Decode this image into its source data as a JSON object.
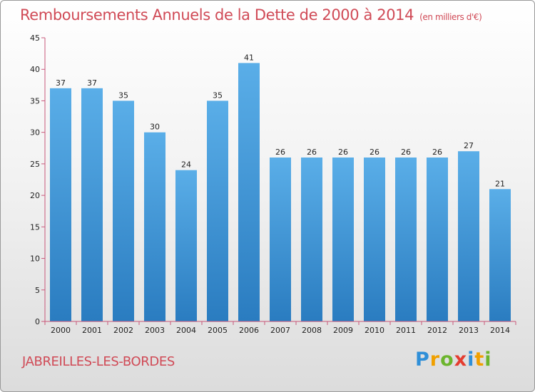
{
  "chart_data": {
    "type": "bar",
    "title": "Remboursements Annuels de la Dette de 2000 à 2014",
    "unit_label": "(en milliers d'€)",
    "categories": [
      "2000",
      "2001",
      "2002",
      "2003",
      "2004",
      "2005",
      "2006",
      "2007",
      "2008",
      "2009",
      "2010",
      "2011",
      "2012",
      "2013",
      "2014"
    ],
    "values": [
      37,
      37,
      35,
      30,
      24,
      35,
      41,
      26,
      26,
      26,
      26,
      26,
      26,
      27,
      21
    ],
    "ylim": [
      0,
      45
    ],
    "yticks": [
      0,
      5,
      10,
      15,
      20,
      25,
      30,
      35,
      40,
      45
    ],
    "xlabel": "",
    "ylabel": "",
    "grid": false,
    "bar_color_top": "#5aaee8",
    "bar_color_bottom": "#2a7cc0",
    "axis_color": "#c8577a"
  },
  "footer": {
    "place_name": "JABREILLES-LES-BORDES"
  },
  "logo": {
    "letters": [
      "P",
      "r",
      "o",
      "x",
      "i",
      "t",
      "i"
    ],
    "colors": [
      "#2f8fd8",
      "#f0a000",
      "#6cb52d",
      "#e43d30",
      "#2f8fd8",
      "#f0a000",
      "#6cb52d"
    ]
  }
}
